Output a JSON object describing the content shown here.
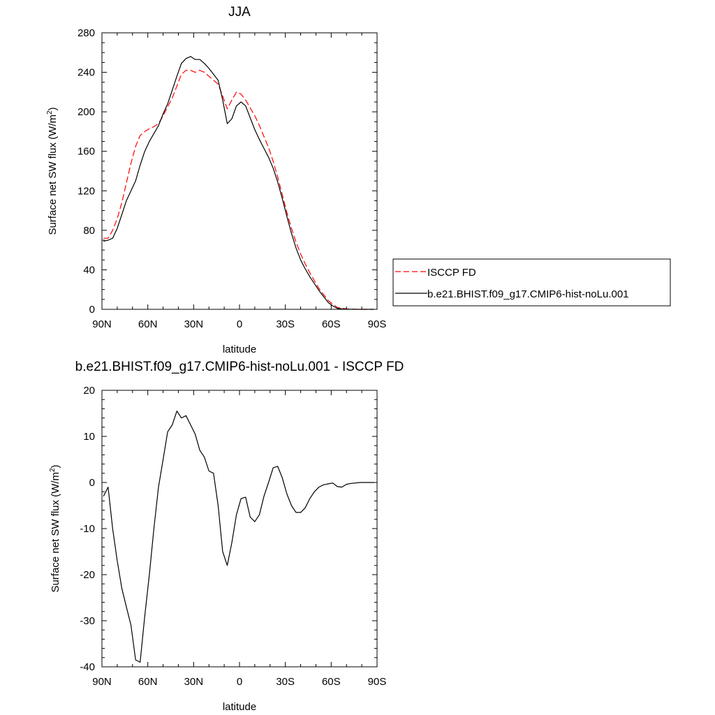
{
  "chart_data": [
    {
      "type": "line",
      "title": "JJA",
      "xlabel": "latitude",
      "ylabel": "Surface net SW flux (W/m",
      "ylabel_sup": "2",
      "ylabel_close": ")",
      "xlim": [
        90,
        -90
      ],
      "ylim": [
        0,
        280
      ],
      "x_ticks": [
        90,
        60,
        30,
        0,
        -30,
        -60,
        -90
      ],
      "x_tick_labels": [
        "90N",
        "60N",
        "30N",
        "0",
        "30S",
        "60S",
        "90S"
      ],
      "y_ticks": [
        0,
        40,
        80,
        120,
        160,
        200,
        240,
        280
      ],
      "y_tick_labels": [
        "0",
        "40",
        "80",
        "120",
        "160",
        "200",
        "240",
        "280"
      ],
      "legend_position": "right",
      "series": [
        {
          "name": "ISCCP FD",
          "color": "#ff0000",
          "dash": "dashed",
          "x": [
            89,
            86,
            83,
            80,
            77,
            74,
            71,
            68,
            65,
            62,
            59,
            56,
            53,
            50,
            47,
            44,
            41,
            38,
            35,
            32,
            29,
            26,
            23,
            20,
            17,
            14,
            11,
            8,
            5,
            2,
            -1,
            -4,
            -7,
            -10,
            -13,
            -16,
            -19,
            -22,
            -25,
            -28,
            -31,
            -34,
            -37,
            -40,
            -43,
            -46,
            -49,
            -52,
            -55,
            -58,
            -61,
            -64,
            -67,
            -70,
            -73,
            -76,
            -79,
            -82,
            -85,
            -88
          ],
          "y": [
            72,
            72,
            80,
            92,
            108,
            128,
            148,
            165,
            176,
            180,
            183,
            185,
            188,
            196,
            205,
            214,
            226,
            238,
            242,
            242,
            240,
            242,
            240,
            236,
            232,
            228,
            216,
            203,
            212,
            220,
            218,
            212,
            204,
            196,
            186,
            175,
            164,
            150,
            134,
            116,
            98,
            82,
            68,
            56,
            46,
            37,
            29,
            21,
            15,
            9,
            5,
            2,
            1,
            0.5,
            0.2,
            0.1,
            0,
            0,
            0,
            0
          ]
        },
        {
          "name": "b.e21.BHIST.f09_g17.CMIP6-hist-noLu.001",
          "color": "#000000",
          "dash": "solid",
          "x": [
            89,
            86,
            83,
            80,
            77,
            74,
            71,
            68,
            65,
            62,
            59,
            56,
            53,
            50,
            47,
            44,
            41,
            38,
            35,
            32,
            29,
            26,
            23,
            20,
            17,
            14,
            11,
            8,
            5,
            2,
            -1,
            -4,
            -7,
            -10,
            -13,
            -16,
            -19,
            -22,
            -25,
            -28,
            -31,
            -34,
            -37,
            -40,
            -43,
            -46,
            -49,
            -52,
            -55,
            -58,
            -61,
            -64,
            -67,
            -70,
            -73,
            -76,
            -79,
            -82,
            -85,
            -88
          ],
          "y": [
            69,
            70,
            72,
            82,
            96,
            110,
            120,
            130,
            146,
            160,
            170,
            178,
            186,
            198,
            208,
            222,
            236,
            249,
            254,
            256,
            253,
            253,
            249,
            244,
            238,
            232,
            212,
            188,
            193,
            206,
            210,
            206,
            194,
            182,
            172,
            163,
            154,
            143,
            129,
            112,
            94,
            77,
            62,
            50,
            41,
            33,
            26,
            19,
            13,
            7,
            3.5,
            1,
            0.5,
            0.2,
            0.1,
            0,
            0,
            0,
            0,
            0
          ]
        }
      ]
    },
    {
      "type": "line",
      "title": "b.e21.BHIST.f09_g17.CMIP6-hist-noLu.001 - ISCCP FD",
      "xlabel": "latitude",
      "ylabel": "Surface net SW flux (W/m",
      "ylabel_sup": "2",
      "ylabel_close": ")",
      "xlim": [
        90,
        -90
      ],
      "ylim": [
        -40,
        20
      ],
      "x_ticks": [
        90,
        60,
        30,
        0,
        -30,
        -60,
        -90
      ],
      "x_tick_labels": [
        "90N",
        "60N",
        "30N",
        "0",
        "30S",
        "60S",
        "90S"
      ],
      "y_ticks": [
        -40,
        -30,
        -20,
        -10,
        0,
        10,
        20
      ],
      "y_tick_labels": [
        "-40",
        "-30",
        "-20",
        "-10",
        "0",
        "10",
        "20"
      ],
      "series": [
        {
          "color": "#000000",
          "dash": "solid",
          "x": [
            89,
            86,
            83,
            80,
            77,
            74,
            71,
            68,
            65,
            62,
            59,
            56,
            53,
            50,
            47,
            44,
            41,
            38,
            35,
            32,
            29,
            26,
            23,
            20,
            17,
            14,
            11,
            8,
            5,
            2,
            -1,
            -4,
            -7,
            -10,
            -13,
            -16,
            -19,
            -22,
            -25,
            -28,
            -31,
            -34,
            -37,
            -40,
            -43,
            -46,
            -49,
            -52,
            -55,
            -58,
            -61,
            -64,
            -67,
            -70,
            -73,
            -76,
            -79,
            -82,
            -85,
            -88
          ],
          "y": [
            -3,
            -1,
            -10,
            -17,
            -23,
            -27,
            -31,
            -38.5,
            -39,
            -29,
            -20,
            -10,
            -1,
            5,
            11,
            12.5,
            15.5,
            14,
            14.5,
            12.5,
            10.5,
            7,
            5.5,
            2.5,
            2,
            -5,
            -15,
            -18,
            -13,
            -7,
            -3.5,
            -3.2,
            -7.5,
            -8.5,
            -7,
            -3,
            0,
            3.2,
            3.5,
            1,
            -2.5,
            -5,
            -6.5,
            -6.5,
            -5.5,
            -3.5,
            -2,
            -1,
            -0.5,
            -0.3,
            -0.1,
            -0.9,
            -1,
            -0.4,
            -0.2,
            -0.1,
            0,
            0,
            0,
            0
          ]
        }
      ]
    }
  ]
}
